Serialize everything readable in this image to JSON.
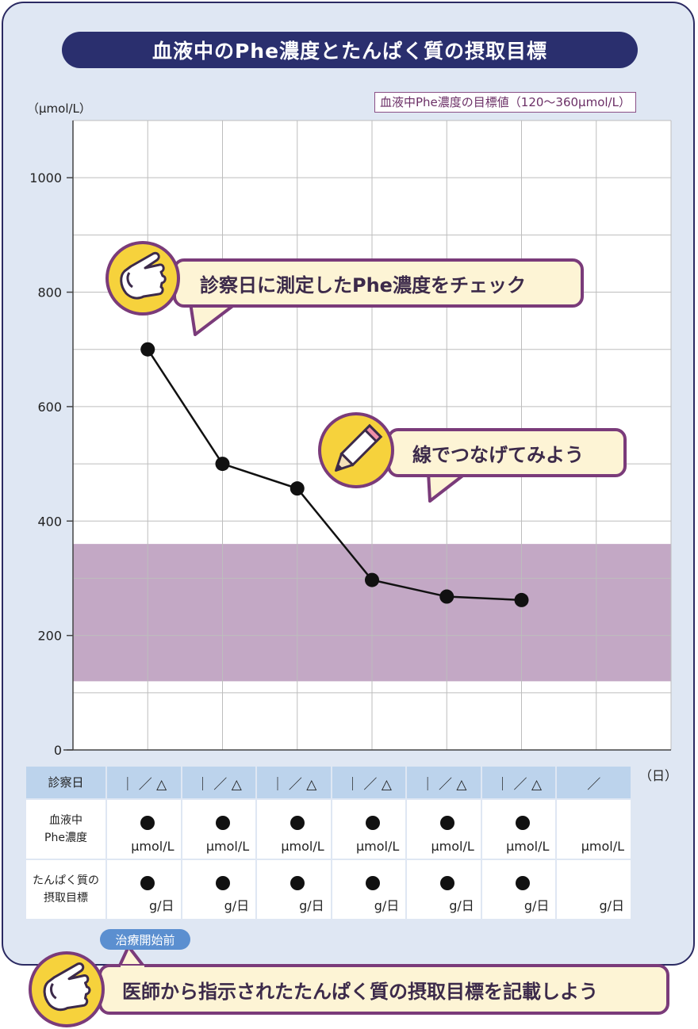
{
  "title": "血液中のPhe濃度とたんぱく質の摂取目標",
  "target_legend": "血液中Phe濃度の目標値（120〜360μmol/L）",
  "colors": {
    "target_band": "#c3a8c5",
    "title_bg": "#2a2f6e",
    "accent_purple": "#7a3b7a",
    "bubble_bg": "#fdf4d5",
    "badge_yellow": "#f6d23c",
    "card_bg": "#dfe7f3"
  },
  "callouts": {
    "check": "診察日に測定したPhe濃度をチェック",
    "connect": "線でつなげてみよう",
    "record": "医師から指示されたたんぱく質の摂取目標を記載しよう",
    "pre_treatment": "治療開始前"
  },
  "chart_data": {
    "type": "line",
    "title": "血液中のPhe濃度とたんぱく質の摂取目標",
    "ylabel": "（μmol/L）",
    "xlabel": "",
    "ylim": [
      0,
      1100
    ],
    "yticks": [
      "0",
      "200",
      "400",
      "600",
      "800",
      "1000"
    ],
    "ytick_values": [
      0,
      200,
      400,
      600,
      800,
      1000
    ],
    "grid": true,
    "x": [
      1,
      2,
      3,
      4,
      5,
      6
    ],
    "series": [
      {
        "values": [
          700,
          500,
          457,
          297,
          268,
          262
        ]
      }
    ],
    "target_range": [
      120,
      360
    ],
    "columns": 8
  },
  "table": {
    "day_unit": "（日）",
    "row_labels": {
      "date": "診察日",
      "phe": [
        "血液中",
        "Phe濃度"
      ],
      "protein": [
        "たんぱく質の",
        "摂取目標"
      ]
    },
    "dates": [
      "｜ ／ △",
      "｜ ／ △",
      "｜ ／ △",
      "｜ ／ △",
      "｜ ／ △",
      "｜ ／ △",
      "／"
    ],
    "phe_unit": "μmol/L",
    "protein_unit": "g/日"
  }
}
